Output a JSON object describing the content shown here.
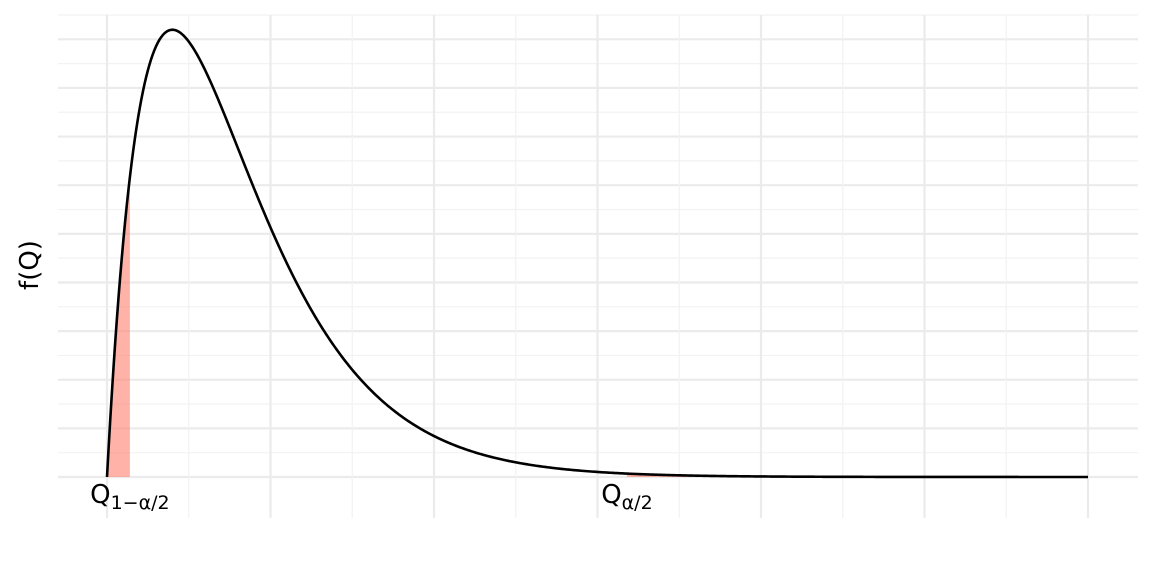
{
  "chart_data": {
    "type": "area",
    "title": "",
    "xlabel": "",
    "ylabel": "f(Q)",
    "grid": true,
    "distribution": "chi-square",
    "df": 4,
    "xlim": [
      0,
      30
    ],
    "ylim": [
      0,
      0.19
    ],
    "curve_color": "#000000",
    "tail_fill_color": "#ff7f6e",
    "tail_fill_opacity": 0.6,
    "shaded_regions": [
      {
        "name": "lower-tail",
        "from": 0,
        "to": 0.7
      },
      {
        "name": "upper-tail",
        "from": 15.9,
        "to": 30
      }
    ],
    "x_ticks": [
      {
        "value": 0.7,
        "main": "Q",
        "sub": "1−α/2"
      },
      {
        "value": 15.9,
        "main": "Q",
        "sub": "α/2"
      }
    ]
  }
}
